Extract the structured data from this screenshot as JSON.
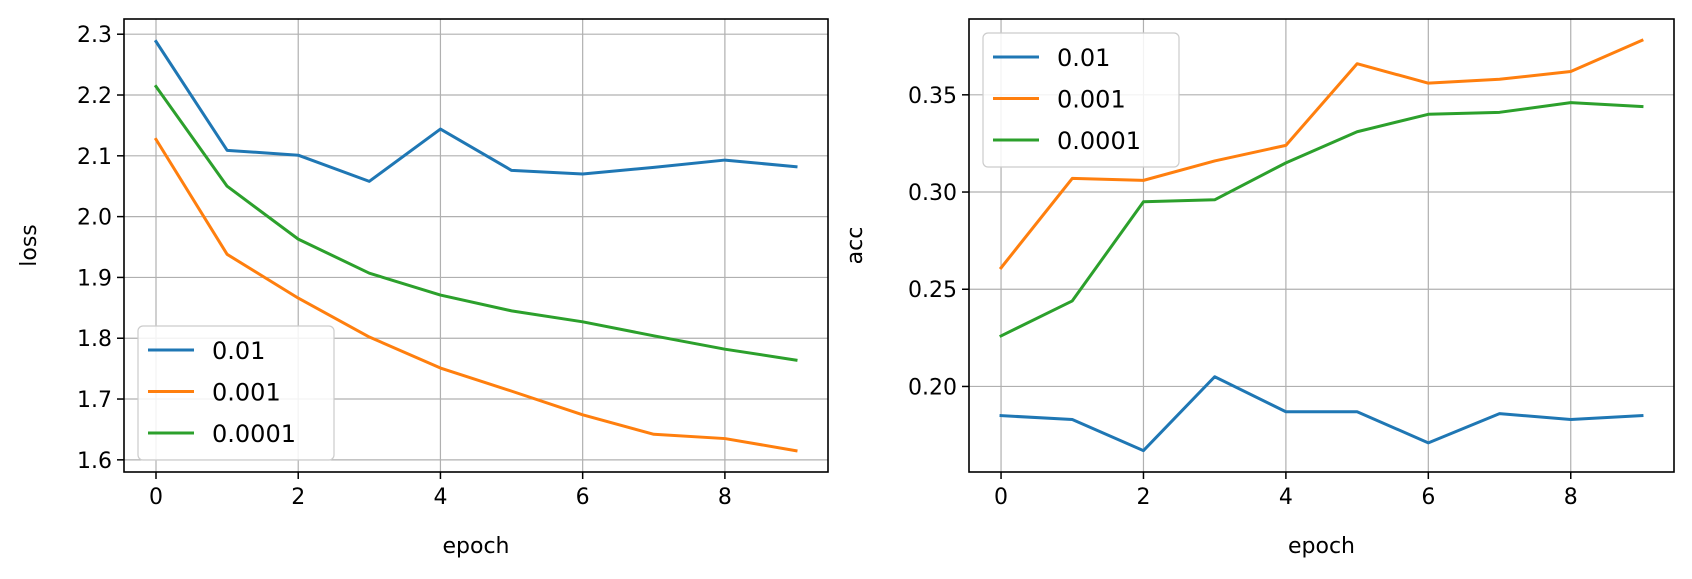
{
  "chart_data": [
    {
      "type": "line",
      "title": "",
      "xlabel": "epoch",
      "ylabel": "loss",
      "xlim": [
        -0.45,
        9.45
      ],
      "ylim": [
        1.58,
        2.325
      ],
      "xticks": [
        0,
        2,
        4,
        6,
        8
      ],
      "xtick_labels": [
        "0",
        "2",
        "4",
        "6",
        "8"
      ],
      "yticks": [
        1.6,
        1.7,
        1.8,
        1.9,
        2.0,
        2.1,
        2.2,
        2.3
      ],
      "ytick_labels": [
        "1.6",
        "1.7",
        "1.8",
        "1.9",
        "2.0",
        "2.1",
        "2.2",
        "2.3"
      ],
      "grid": true,
      "legend_position": "lower-left",
      "x": [
        0,
        1,
        2,
        3,
        4,
        5,
        6,
        7,
        8,
        9
      ],
      "series": [
        {
          "name": "0.01",
          "color": "#1f77b4",
          "values": [
            2.288,
            2.109,
            2.101,
            2.058,
            2.144,
            2.076,
            2.07,
            2.081,
            2.093,
            2.082
          ]
        },
        {
          "name": "0.001",
          "color": "#ff7f0e",
          "values": [
            2.127,
            1.938,
            1.866,
            1.802,
            1.751,
            1.713,
            1.674,
            1.642,
            1.635,
            1.615
          ]
        },
        {
          "name": "0.0001",
          "color": "#2ca02c",
          "values": [
            2.214,
            2.05,
            1.963,
            1.907,
            1.871,
            1.845,
            1.827,
            1.804,
            1.782,
            1.764
          ]
        }
      ]
    },
    {
      "type": "line",
      "title": "",
      "xlabel": "epoch",
      "ylabel": "acc",
      "xlim": [
        -0.45,
        9.45
      ],
      "ylim": [
        0.156,
        0.389
      ],
      "xticks": [
        0,
        2,
        4,
        6,
        8
      ],
      "xtick_labels": [
        "0",
        "2",
        "4",
        "6",
        "8"
      ],
      "yticks": [
        0.2,
        0.25,
        0.3,
        0.35
      ],
      "ytick_labels": [
        "0.20",
        "0.25",
        "0.30",
        "0.35"
      ],
      "grid": true,
      "legend_position": "upper-left",
      "x": [
        0,
        1,
        2,
        3,
        4,
        5,
        6,
        7,
        8,
        9
      ],
      "series": [
        {
          "name": "0.01",
          "color": "#1f77b4",
          "values": [
            0.185,
            0.183,
            0.167,
            0.205,
            0.187,
            0.187,
            0.171,
            0.186,
            0.183,
            0.185
          ]
        },
        {
          "name": "0.001",
          "color": "#ff7f0e",
          "values": [
            0.261,
            0.307,
            0.306,
            0.316,
            0.324,
            0.366,
            0.356,
            0.358,
            0.362,
            0.378
          ]
        },
        {
          "name": "0.0001",
          "color": "#2ca02c",
          "values": [
            0.226,
            0.244,
            0.295,
            0.296,
            0.315,
            0.331,
            0.34,
            0.341,
            0.346,
            0.344
          ]
        }
      ]
    }
  ]
}
